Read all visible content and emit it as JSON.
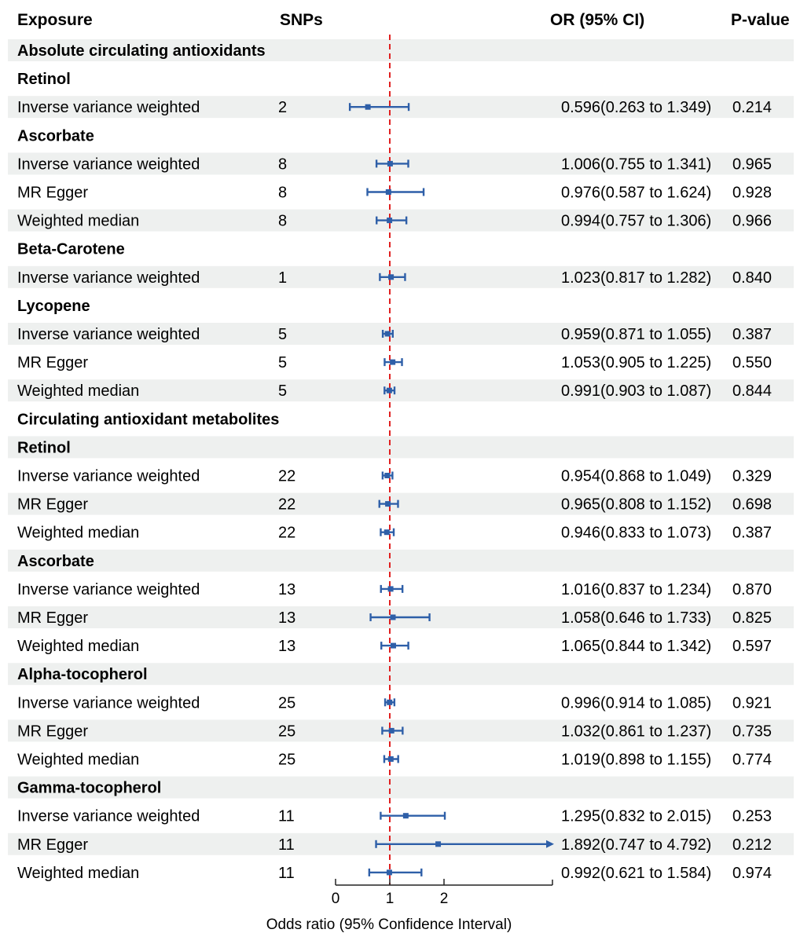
{
  "header": {
    "exposure": "Exposure",
    "snps": "SNPs",
    "or": "OR (95% CI)",
    "p": "P-value"
  },
  "colors": {
    "band": "#eef0ef",
    "estimate": "#2e5fa8",
    "reference_line": "#e02020",
    "axis": "#222222",
    "text": "#111111"
  },
  "chart_data": {
    "type": "forest",
    "reference_value": 1,
    "xlim": [
      0,
      4.1
    ],
    "xticks": [
      0,
      1,
      2
    ],
    "xlabel": "Odds ratio (95% Confidence Interval)",
    "rows": [
      {
        "kind": "section",
        "label": "Absolute circulating antioxidants"
      },
      {
        "kind": "section",
        "label": "Retinol"
      },
      {
        "kind": "data",
        "method": "Inverse variance weighted",
        "snps": "2",
        "or": 0.596,
        "lo": 0.263,
        "hi": 1.349,
        "text": "0.596(0.263 to 1.349)",
        "p": "0.214"
      },
      {
        "kind": "section",
        "label": "Ascorbate"
      },
      {
        "kind": "data",
        "method": "Inverse variance weighted",
        "snps": "8",
        "or": 1.006,
        "lo": 0.755,
        "hi": 1.341,
        "text": "1.006(0.755 to 1.341)",
        "p": "0.965"
      },
      {
        "kind": "data",
        "method": "MR Egger",
        "snps": "8",
        "or": 0.976,
        "lo": 0.587,
        "hi": 1.624,
        "text": "0.976(0.587 to 1.624)",
        "p": "0.928"
      },
      {
        "kind": "data",
        "method": "Weighted median",
        "snps": "8",
        "or": 0.994,
        "lo": 0.757,
        "hi": 1.306,
        "text": "0.994(0.757 to 1.306)",
        "p": "0.966"
      },
      {
        "kind": "section",
        "label": "Beta-Carotene"
      },
      {
        "kind": "data",
        "method": "Inverse variance weighted",
        "snps": "1",
        "or": 1.023,
        "lo": 0.817,
        "hi": 1.282,
        "text": "1.023(0.817 to 1.282)",
        "p": "0.840"
      },
      {
        "kind": "section",
        "label": "Lycopene"
      },
      {
        "kind": "data",
        "method": "Inverse variance weighted",
        "snps": "5",
        "or": 0.959,
        "lo": 0.871,
        "hi": 1.055,
        "text": "0.959(0.871 to 1.055)",
        "p": "0.387"
      },
      {
        "kind": "data",
        "method": "MR Egger",
        "snps": "5",
        "or": 1.053,
        "lo": 0.905,
        "hi": 1.225,
        "text": "1.053(0.905 to 1.225)",
        "p": "0.550"
      },
      {
        "kind": "data",
        "method": "Weighted median",
        "snps": "5",
        "or": 0.991,
        "lo": 0.903,
        "hi": 1.087,
        "text": "0.991(0.903 to 1.087)",
        "p": "0.844"
      },
      {
        "kind": "section",
        "label": "Circulating antioxidant metabolites"
      },
      {
        "kind": "section",
        "label": "Retinol"
      },
      {
        "kind": "data",
        "method": "Inverse variance weighted",
        "snps": "22",
        "or": 0.954,
        "lo": 0.868,
        "hi": 1.049,
        "text": "0.954(0.868 to 1.049)",
        "p": "0.329"
      },
      {
        "kind": "data",
        "method": "MR Egger",
        "snps": "22",
        "or": 0.965,
        "lo": 0.808,
        "hi": 1.152,
        "text": "0.965(0.808 to 1.152)",
        "p": "0.698"
      },
      {
        "kind": "data",
        "method": "Weighted median",
        "snps": "22",
        "or": 0.946,
        "lo": 0.833,
        "hi": 1.073,
        "text": "0.946(0.833 to 1.073)",
        "p": "0.387"
      },
      {
        "kind": "section",
        "label": "Ascorbate"
      },
      {
        "kind": "data",
        "method": "Inverse variance weighted",
        "snps": "13",
        "or": 1.016,
        "lo": 0.837,
        "hi": 1.234,
        "text": "1.016(0.837 to 1.234)",
        "p": "0.870"
      },
      {
        "kind": "data",
        "method": "MR Egger",
        "snps": "13",
        "or": 1.058,
        "lo": 0.646,
        "hi": 1.733,
        "text": "1.058(0.646 to 1.733)",
        "p": "0.825"
      },
      {
        "kind": "data",
        "method": "Weighted median",
        "snps": "13",
        "or": 1.065,
        "lo": 0.844,
        "hi": 1.342,
        "text": "1.065(0.844 to 1.342)",
        "p": "0.597"
      },
      {
        "kind": "section",
        "label": "Alpha-tocopherol"
      },
      {
        "kind": "data",
        "method": "Inverse variance weighted",
        "snps": "25",
        "or": 0.996,
        "lo": 0.914,
        "hi": 1.085,
        "text": "0.996(0.914 to 1.085)",
        "p": "0.921"
      },
      {
        "kind": "data",
        "method": "MR Egger",
        "snps": "25",
        "or": 1.032,
        "lo": 0.861,
        "hi": 1.237,
        "text": "1.032(0.861 to 1.237)",
        "p": "0.735"
      },
      {
        "kind": "data",
        "method": "Weighted median",
        "snps": "25",
        "or": 1.019,
        "lo": 0.898,
        "hi": 1.155,
        "text": "1.019(0.898 to 1.155)",
        "p": "0.774"
      },
      {
        "kind": "section",
        "label": "Gamma-tocopherol"
      },
      {
        "kind": "data",
        "method": "Inverse variance weighted",
        "snps": "11",
        "or": 1.295,
        "lo": 0.832,
        "hi": 2.015,
        "text": "1.295(0.832 to 2.015)",
        "p": "0.253"
      },
      {
        "kind": "data",
        "method": "MR Egger",
        "snps": "11",
        "or": 1.892,
        "lo": 0.747,
        "hi": 4.792,
        "text": "1.892(0.747 to 4.792)",
        "p": "0.212",
        "arrow_right": true
      },
      {
        "kind": "data",
        "method": "Weighted median",
        "snps": "11",
        "or": 0.992,
        "lo": 0.621,
        "hi": 1.584,
        "text": "0.992(0.621 to 1.584)",
        "p": "0.974"
      }
    ]
  }
}
